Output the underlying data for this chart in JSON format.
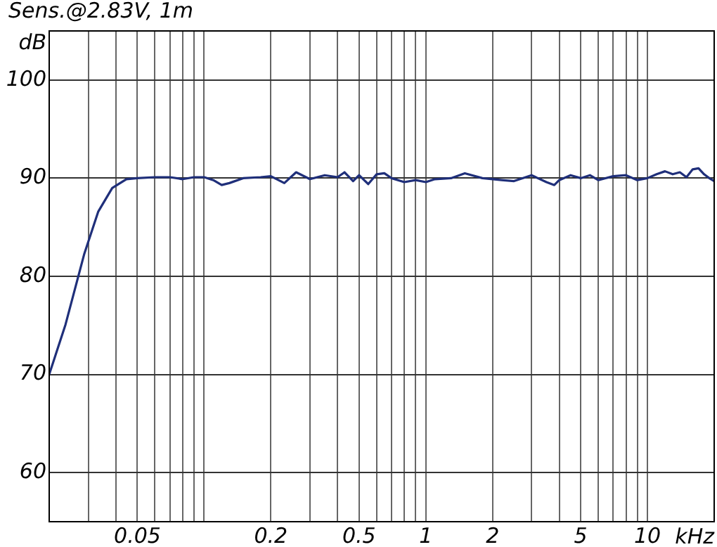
{
  "chart_data": {
    "type": "line",
    "title": "Sens.@2.83V, 1m",
    "xlabel": "kHz",
    "ylabel": "dB",
    "log": "x",
    "grid": true,
    "legend": false,
    "marker": "none",
    "line_style": "solid",
    "xlim": [
      0.02,
      20
    ],
    "ylim": [
      55,
      105
    ],
    "yticks": [
      60,
      70,
      80,
      90,
      100
    ],
    "xticks": [
      {
        "value": 0.02,
        "label": null
      },
      {
        "value": 0.03,
        "label": null
      },
      {
        "value": 0.04,
        "label": null
      },
      0.05,
      {
        "value": 0.06,
        "label": null
      },
      {
        "value": 0.07,
        "label": null
      },
      {
        "value": 0.08,
        "label": null
      },
      {
        "value": 0.09,
        "label": null
      },
      {
        "value": 0.1,
        "label": null
      },
      0.2,
      {
        "value": 0.3,
        "label": null
      },
      {
        "value": 0.4,
        "label": null
      },
      0.5,
      {
        "value": 0.6,
        "label": null
      },
      {
        "value": 0.7,
        "label": null
      },
      {
        "value": 0.8,
        "label": null
      },
      {
        "value": 0.9,
        "label": null
      },
      1,
      2,
      {
        "value": 3,
        "label": null
      },
      {
        "value": 4,
        "label": null
      },
      5,
      {
        "value": 6,
        "label": null
      },
      {
        "value": 7,
        "label": null
      },
      {
        "value": 8,
        "label": null
      },
      {
        "value": 9,
        "label": null
      },
      10,
      {
        "value": 20,
        "label": null
      }
    ],
    "series": [
      {
        "color": "#1f2f7a",
        "x": [
          0.02,
          0.0237,
          0.0288,
          0.0333,
          0.0385,
          0.0446,
          0.05,
          0.06,
          0.07,
          0.08,
          0.09,
          0.1,
          0.11,
          0.12,
          0.13,
          0.15,
          0.18,
          0.2,
          0.23,
          0.26,
          0.3,
          0.35,
          0.4,
          0.43,
          0.47,
          0.5,
          0.55,
          0.6,
          0.65,
          0.7,
          0.8,
          0.9,
          1.0,
          1.1,
          1.3,
          1.5,
          1.8,
          2.2,
          2.5,
          3,
          3.5,
          3.8,
          4,
          4.5,
          5,
          5.5,
          6,
          7,
          8,
          9,
          10,
          11,
          12,
          13,
          14,
          15,
          16,
          17,
          18,
          19,
          20
        ],
        "values": [
          70,
          75.1,
          82.3,
          86.6,
          89,
          89.9,
          90,
          90.1,
          90.1,
          89.9,
          90.1,
          90.1,
          89.8,
          89.3,
          89.5,
          90,
          90.1,
          90.2,
          89.5,
          90.6,
          89.9,
          90.3,
          90.1,
          90.6,
          89.7,
          90.3,
          89.4,
          90.4,
          90.5,
          90,
          89.6,
          89.8,
          89.6,
          89.9,
          90,
          90.5,
          90,
          89.8,
          89.7,
          90.3,
          89.6,
          89.3,
          89.8,
          90.3,
          90,
          90.3,
          89.8,
          90.2,
          90.3,
          89.8,
          90,
          90.4,
          90.7,
          90.4,
          90.6,
          90.1,
          90.9,
          91,
          90.4,
          90,
          89.7
        ]
      }
    ]
  }
}
